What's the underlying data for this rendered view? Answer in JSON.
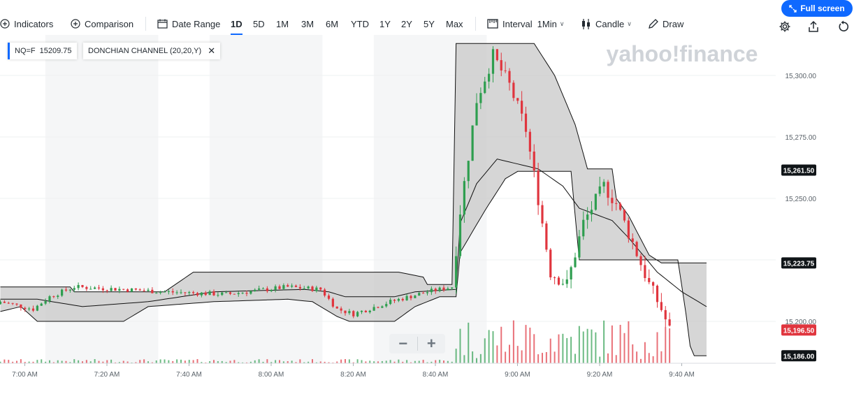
{
  "toolbar": {
    "indicators": "Indicators",
    "comparison": "Comparison",
    "date_range": "Date Range",
    "ranges": [
      "1D",
      "5D",
      "1M",
      "3M",
      "6M",
      "YTD",
      "1Y",
      "2Y",
      "5Y",
      "Max"
    ],
    "active_range": "1D",
    "interval_label": "Interval",
    "interval_value": "1Min",
    "chart_type": "Candle",
    "draw": "Draw",
    "full_screen": "Full screen"
  },
  "legend": {
    "symbol_label": "NQ=F",
    "symbol_value": "15209.75",
    "indicator": "DONCHIAN CHANNEL (20,20,Y)"
  },
  "watermark": "yahoo!finance",
  "colors": {
    "accent": "#0f69ff",
    "up": "#2e9e4f",
    "down": "#e0353e",
    "band": "#c8c8c8"
  },
  "chart_data": {
    "type": "candlestick",
    "x_ticks": [
      "7:00 AM",
      "7:20 AM",
      "7:40 AM",
      "8:00 AM",
      "8:20 AM",
      "8:40 AM",
      "9:00 AM",
      "9:20 AM",
      "9:40 AM"
    ],
    "y_ticks": [
      "15,300.00",
      "15,275.00",
      "15,250.00",
      "15,225.00",
      "15,200.00"
    ],
    "ylim": [
      15185,
      15314
    ],
    "price_badges": [
      {
        "label": "15,261.50",
        "price": 15261.5,
        "kind": "dark"
      },
      {
        "label": "15,223.75",
        "price": 15223.75,
        "kind": "dark"
      },
      {
        "label": "15,196.50",
        "price": 15196.5,
        "kind": "red"
      },
      {
        "label": "15,186.00",
        "price": 15186.0,
        "kind": "dark"
      }
    ],
    "donchian": {
      "upper": [
        [
          0,
          15214
        ],
        [
          17,
          15214
        ],
        [
          18,
          15212
        ],
        [
          40,
          15212
        ],
        [
          47,
          15220
        ],
        [
          73,
          15220
        ],
        [
          97,
          15220
        ],
        [
          103,
          15218
        ],
        [
          104,
          15215
        ],
        [
          110,
          15215
        ],
        [
          111,
          15313
        ],
        [
          130,
          15313
        ],
        [
          135,
          15300
        ],
        [
          140,
          15280
        ],
        [
          143,
          15262
        ],
        [
          149,
          15262
        ],
        [
          150,
          15250
        ],
        [
          153,
          15243
        ],
        [
          158,
          15227
        ],
        [
          161,
          15223.75
        ],
        [
          172,
          15223.75
        ]
      ],
      "lower": [
        [
          0,
          15204
        ],
        [
          5,
          15206
        ],
        [
          9,
          15200
        ],
        [
          30,
          15200
        ],
        [
          34,
          15204
        ],
        [
          36,
          15206
        ],
        [
          52,
          15208
        ],
        [
          70,
          15209
        ],
        [
          76,
          15208
        ],
        [
          82,
          15202
        ],
        [
          85,
          15200
        ],
        [
          96,
          15200
        ],
        [
          101,
          15206
        ],
        [
          107,
          15210
        ],
        [
          111,
          15210
        ],
        [
          112,
          15228
        ],
        [
          118,
          15245
        ],
        [
          123,
          15258
        ],
        [
          126,
          15261
        ],
        [
          138,
          15261
        ],
        [
          139,
          15261
        ],
        [
          141,
          15225
        ],
        [
          165,
          15225
        ],
        [
          167,
          15203
        ],
        [
          168,
          15190
        ],
        [
          169,
          15186
        ],
        [
          172,
          15186
        ]
      ],
      "middle": [
        [
          0,
          15209
        ],
        [
          9,
          15209
        ],
        [
          20,
          15206
        ],
        [
          36,
          15208
        ],
        [
          52,
          15212
        ],
        [
          74,
          15213
        ],
        [
          80,
          15212
        ],
        [
          84,
          15210
        ],
        [
          96,
          15210
        ],
        [
          101,
          15212
        ],
        [
          111,
          15213
        ],
        [
          112,
          15240
        ],
        [
          116,
          15256
        ],
        [
          121,
          15266
        ],
        [
          131,
          15262
        ],
        [
          137,
          15255
        ],
        [
          141,
          15246
        ],
        [
          149,
          15241
        ],
        [
          153,
          15234
        ],
        [
          160,
          15220
        ],
        [
          166,
          15212
        ],
        [
          172,
          15206
        ]
      ]
    }
  }
}
